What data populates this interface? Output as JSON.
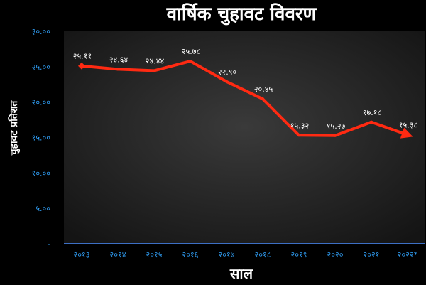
{
  "chart_data": {
    "type": "line",
    "title": "वार्षिक चुहावट विवरण",
    "xlabel": "साल",
    "ylabel": "चुहावट प्रतिशत",
    "categories": [
      "२०१३",
      "२०१४",
      "२०१५",
      "२०१६",
      "२०१७",
      "२०१८",
      "२०१९",
      "२०२०",
      "२०२१",
      "२०२२*"
    ],
    "series": [
      {
        "values": [
          25.11,
          24.64,
          24.44,
          25.78,
          22.9,
          20.45,
          15.32,
          15.27,
          17.18,
          15.38
        ],
        "labels": [
          "२५.११",
          "२४.६४",
          "२४.४४",
          "२५.७८",
          "२२.९०",
          "२०.४५",
          "१५.३२",
          "१५.२७",
          "१७.१८",
          "१५.३८"
        ]
      }
    ],
    "ylim": [
      0,
      30
    ],
    "yticks": [
      {
        "value": 30,
        "label": "३०.००"
      },
      {
        "value": 25,
        "label": "२५.००"
      },
      {
        "value": 20,
        "label": "२०.००"
      },
      {
        "value": 15,
        "label": "१५.००"
      },
      {
        "value": 10,
        "label": "१०.००"
      },
      {
        "value": 5,
        "label": "५.००"
      },
      {
        "value": 0,
        "label": "-"
      }
    ],
    "grid": false,
    "colors": {
      "background": "#000000",
      "plot_center": "#3a3a3a",
      "plot_edge": "#151515",
      "line": "#ff2a12",
      "tick_text": "#2f9bf0",
      "data_label": "#ffffff"
    }
  }
}
